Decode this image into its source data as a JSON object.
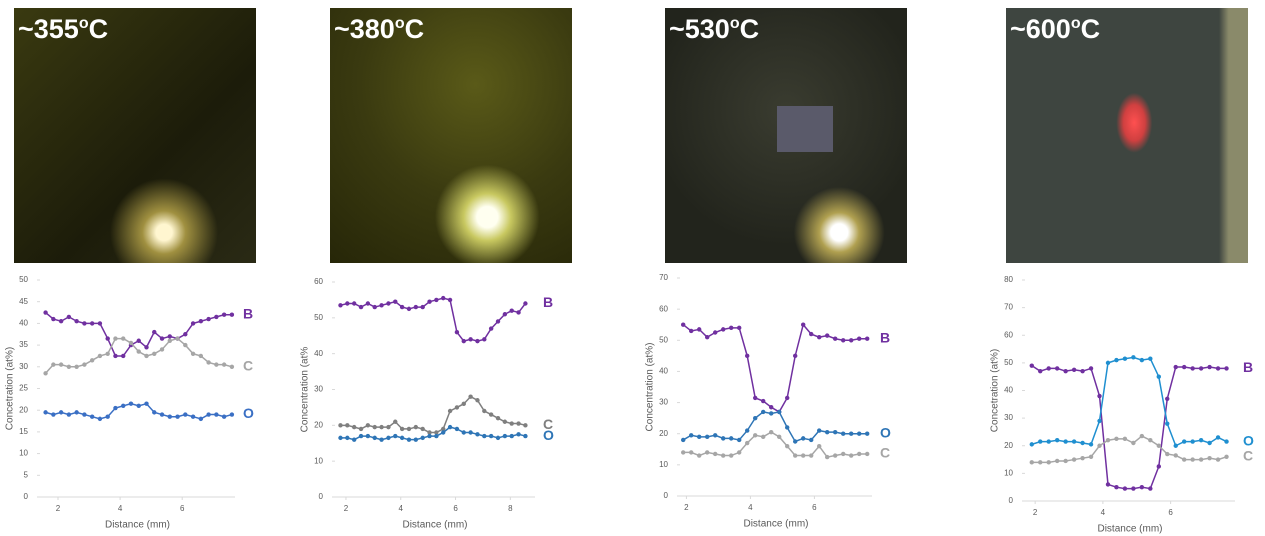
{
  "photos": [
    {
      "temp": "~355",
      "degree": "o",
      "unit": "C"
    },
    {
      "temp": "~380",
      "degree": "o",
      "unit": "C"
    },
    {
      "temp": "~530",
      "degree": "o",
      "unit": "C"
    },
    {
      "temp": "~600",
      "degree": "o",
      "unit": "C"
    }
  ],
  "chart_data": [
    {
      "type": "line",
      "xlabel": "Distance (mm)",
      "ylabel": "Concetration (at%)",
      "x": [
        1.6,
        1.85,
        2.1,
        2.35,
        2.6,
        2.85,
        3.1,
        3.35,
        3.6,
        3.85,
        4.1,
        4.35,
        4.6,
        4.85,
        5.1,
        5.35,
        5.6,
        5.85,
        6.1,
        6.35,
        6.6,
        6.85,
        7.1,
        7.35,
        7.6
      ],
      "xlim": [
        1.42,
        7.7
      ],
      "xticks": [
        2,
        4,
        6
      ],
      "ylim": [
        0,
        50
      ],
      "yticks": [
        0,
        5,
        10,
        15,
        20,
        25,
        30,
        35,
        40,
        45,
        50
      ],
      "series": [
        {
          "name": "B",
          "color": "#7030a0",
          "values": [
            42.5,
            41,
            40.5,
            41.5,
            40.5,
            40,
            40,
            40,
            36.5,
            32.5,
            32.5,
            35,
            36,
            34.5,
            38,
            36.5,
            37,
            36.5,
            37.5,
            40,
            40.5,
            41,
            41.5,
            42,
            42
          ]
        },
        {
          "name": "C",
          "color": "#a6a6a6",
          "values": [
            28.5,
            30.5,
            30.5,
            30,
            30,
            30.5,
            31.5,
            32.5,
            33,
            36.5,
            36.5,
            35.5,
            33.5,
            32.5,
            33,
            34,
            36,
            36.5,
            35,
            33,
            32.5,
            31,
            30.5,
            30.5,
            30
          ]
        },
        {
          "name": "O",
          "color": "#3a6fc4",
          "values": [
            19.5,
            19,
            19.5,
            19,
            19.5,
            19,
            18.5,
            18,
            18.5,
            20.5,
            21,
            21.5,
            21,
            21.5,
            19.5,
            19,
            18.5,
            18.5,
            19,
            18.5,
            18,
            19,
            19,
            18.5,
            19
          ]
        }
      ]
    },
    {
      "type": "line",
      "xlabel": "Distance (mm)",
      "ylabel": "Concentration (at%",
      "x": [
        1.8,
        2.05,
        2.3,
        2.55,
        2.8,
        3.05,
        3.3,
        3.55,
        3.8,
        4.05,
        4.3,
        4.55,
        4.8,
        5.05,
        5.3,
        5.55,
        5.8,
        6.05,
        6.3,
        6.55,
        6.8,
        7.05,
        7.3,
        7.55,
        7.8,
        8.05,
        8.3,
        8.55
      ],
      "xlim": [
        1.6,
        8.9
      ],
      "xticks": [
        2,
        4,
        6,
        8
      ],
      "ylim": [
        0,
        60
      ],
      "yticks": [
        0,
        10,
        20,
        30,
        40,
        50,
        60
      ],
      "series": [
        {
          "name": "B",
          "color": "#7030a0",
          "values": [
            53.5,
            54,
            54,
            53,
            54,
            53,
            53.5,
            54,
            54.5,
            53,
            52.5,
            53,
            53,
            54.5,
            55,
            55.5,
            55,
            46,
            43.5,
            44,
            43.5,
            44,
            47,
            49,
            51,
            52,
            51.5,
            54
          ]
        },
        {
          "name": "C",
          "color": "#7f7f7f",
          "values": [
            20,
            20,
            19.5,
            19,
            20,
            19.5,
            19.5,
            19.5,
            21,
            19,
            19,
            19.5,
            19,
            18,
            18,
            19,
            24,
            25,
            26,
            28,
            27,
            24,
            23,
            22,
            21,
            20.5,
            20.5,
            20
          ]
        },
        {
          "name": "O",
          "color": "#2e75b6",
          "values": [
            16.5,
            16.5,
            16,
            17,
            17,
            16.5,
            16,
            16.5,
            17,
            16.5,
            16,
            16,
            16.5,
            17,
            17,
            18,
            19.5,
            19,
            18,
            18,
            17.5,
            17,
            17,
            16.5,
            17,
            17,
            17.5,
            17
          ]
        }
      ]
    },
    {
      "type": "line",
      "xlabel": "Distance (mm)",
      "ylabel": "Concentration (at%)",
      "x": [
        1.9,
        2.15,
        2.4,
        2.65,
        2.9,
        3.15,
        3.4,
        3.65,
        3.9,
        4.15,
        4.4,
        4.65,
        4.9,
        5.15,
        5.4,
        5.65,
        5.9,
        6.15,
        6.4,
        6.65,
        6.9,
        7.15,
        7.4,
        7.65
      ],
      "xlim": [
        1.8,
        7.8
      ],
      "xticks": [
        2,
        4,
        6
      ],
      "ylim": [
        0,
        70
      ],
      "yticks": [
        0,
        10,
        20,
        30,
        40,
        50,
        60,
        70
      ],
      "series": [
        {
          "name": "B",
          "color": "#7030a0",
          "values": [
            55,
            53,
            53.5,
            51,
            52.5,
            53.5,
            54,
            54,
            45,
            31.5,
            30.5,
            28.5,
            27,
            31.5,
            45,
            55,
            52,
            51,
            51.5,
            50.5,
            50,
            50,
            50.5,
            50.5
          ]
        },
        {
          "name": "O",
          "color": "#2e75b6",
          "values": [
            18,
            19.5,
            19,
            19,
            19.5,
            18.5,
            18.5,
            18,
            21,
            25,
            27,
            26.5,
            27,
            22,
            17.5,
            18.5,
            18,
            21,
            20.5,
            20.5,
            20,
            20,
            20,
            20
          ]
        },
        {
          "name": "C",
          "color": "#a6a6a6",
          "values": [
            14,
            14,
            13,
            14,
            13.5,
            13,
            13,
            14,
            17,
            19.5,
            19,
            20.5,
            19,
            16,
            13,
            13,
            13,
            16,
            12.5,
            13,
            13.5,
            13,
            13.5,
            13.5
          ]
        }
      ]
    },
    {
      "type": "line",
      "xlabel": "Distance (mm)",
      "ylabel": "Concetration (at%)",
      "x": [
        1.9,
        2.15,
        2.4,
        2.65,
        2.9,
        3.15,
        3.4,
        3.65,
        3.9,
        4.15,
        4.4,
        4.65,
        4.9,
        5.15,
        5.4,
        5.65,
        5.9,
        6.15,
        6.4,
        6.65,
        6.9,
        7.15,
        7.4,
        7.65
      ],
      "xlim": [
        1.7,
        7.9
      ],
      "xticks": [
        2,
        4,
        6
      ],
      "ylim": [
        0,
        80
      ],
      "yticks": [
        0,
        10,
        20,
        30,
        40,
        50,
        60,
        70,
        80
      ],
      "series": [
        {
          "name": "B",
          "color": "#7030a0",
          "values": [
            49,
            47,
            48,
            48,
            47,
            47.5,
            47,
            48,
            38,
            6,
            5,
            4.5,
            4.5,
            5,
            4.5,
            12.5,
            37,
            48.5,
            48.5,
            48,
            48,
            48.5,
            48,
            48
          ]
        },
        {
          "name": "O",
          "color": "#1f8fd0",
          "values": [
            20.5,
            21.5,
            21.5,
            22,
            21.5,
            21.5,
            21,
            20.5,
            29,
            50,
            51,
            51.5,
            52,
            51,
            51.5,
            45,
            28,
            20,
            21.5,
            21.5,
            22,
            21,
            23,
            21.5
          ]
        },
        {
          "name": "C",
          "color": "#a6a6a6",
          "values": [
            14,
            14,
            14,
            14.5,
            14.5,
            15,
            15.5,
            16,
            20,
            22,
            22.5,
            22.5,
            21,
            23.5,
            22,
            20,
            17,
            16.5,
            15,
            15,
            15,
            15.5,
            15,
            16
          ]
        }
      ]
    }
  ]
}
